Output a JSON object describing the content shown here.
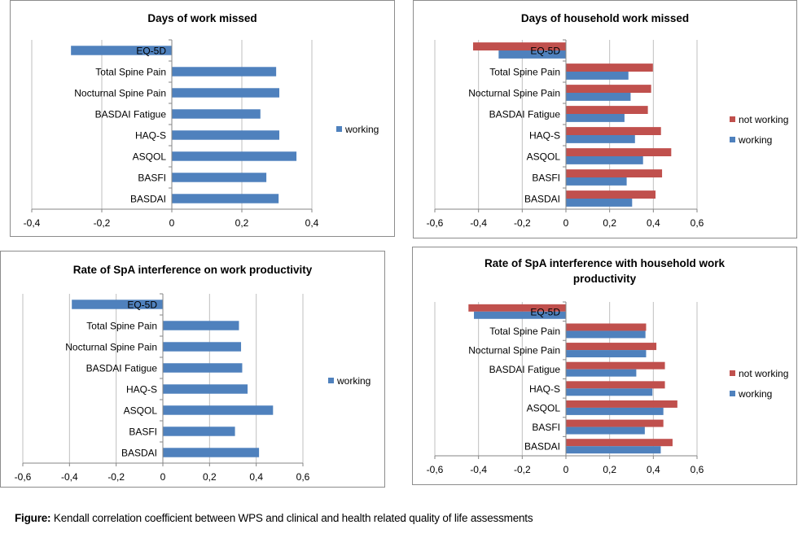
{
  "caption": {
    "prefix": "Figure:",
    "text": " Kendall correlation coefficient between WPS and clinical and health related quality of life assessments"
  },
  "colors": {
    "working": "#4F81BD",
    "not_working": "#C0504D",
    "grid": "#BFBFBF",
    "axis": "#868686"
  },
  "chart_data": [
    {
      "id": "days-work-missed",
      "type": "bar",
      "orientation": "horizontal",
      "title": "Days of work missed",
      "categories": [
        "EQ-5D",
        "Total Spine Pain",
        "Nocturnal Spine Pain",
        "BASDAI Fatigue",
        "HAQ-S",
        "ASQOL",
        "BASFI",
        "BASDAI"
      ],
      "series": [
        {
          "name": "working",
          "color": "#4F81BD",
          "values": [
            -0.288,
            0.298,
            0.307,
            0.253,
            0.307,
            0.356,
            0.27,
            0.305
          ]
        }
      ],
      "xlim": [
        -0.4,
        0.4
      ],
      "xticks": [
        -0.4,
        -0.2,
        0,
        0.2,
        0.4
      ],
      "xtick_labels": [
        "-0,4",
        "-0,2",
        "0",
        "0,2",
        "0,4"
      ],
      "grid": true,
      "legend": "right",
      "xlabel": "",
      "ylabel": ""
    },
    {
      "id": "days-household-work-missed",
      "type": "bar",
      "orientation": "horizontal",
      "title": "Days of household  work missed",
      "categories": [
        "EQ-5D",
        "Total Spine Pain",
        "Nocturnal Spine Pain",
        "BASDAI Fatigue",
        "HAQ-S",
        "ASQOL",
        "BASFI",
        "BASDAI"
      ],
      "series": [
        {
          "name": "not working",
          "color": "#C0504D",
          "values": [
            -0.425,
            0.398,
            0.39,
            0.375,
            0.435,
            0.482,
            0.44,
            0.41
          ]
        },
        {
          "name": "working",
          "color": "#4F81BD",
          "values": [
            -0.308,
            0.286,
            0.296,
            0.268,
            0.316,
            0.353,
            0.278,
            0.303
          ]
        }
      ],
      "xlim": [
        -0.6,
        0.6
      ],
      "xticks": [
        -0.6,
        -0.4,
        -0.2,
        0,
        0.2,
        0.4,
        0.6
      ],
      "xtick_labels": [
        "-0,6",
        "-0,4",
        "-0,2",
        "0",
        "0,2",
        "0,4",
        "0,6"
      ],
      "grid": true,
      "legend": "right",
      "xlabel": "",
      "ylabel": ""
    },
    {
      "id": "rate-interference-work",
      "type": "bar",
      "orientation": "horizontal",
      "title": "Rate of SpA interference on work productivity",
      "categories": [
        "EQ-5D",
        "Total Spine Pain",
        "Nocturnal Spine Pain",
        "BASDAI Fatigue",
        "HAQ-S",
        "ASQOL",
        "BASFI",
        "BASDAI"
      ],
      "series": [
        {
          "name": "working",
          "color": "#4F81BD",
          "values": [
            -0.39,
            0.326,
            0.335,
            0.34,
            0.363,
            0.472,
            0.309,
            0.412
          ]
        }
      ],
      "xlim": [
        -0.6,
        0.6
      ],
      "xticks": [
        -0.6,
        -0.4,
        -0.2,
        0,
        0.2,
        0.4,
        0.6
      ],
      "xtick_labels": [
        "-0,6",
        "-0,4",
        "-0,2",
        "0",
        "0,2",
        "0,4",
        "0,6"
      ],
      "grid": true,
      "legend": "right",
      "xlabel": "",
      "ylabel": ""
    },
    {
      "id": "rate-interference-household",
      "type": "bar",
      "orientation": "horizontal",
      "title": "Rate of SpA interference with household  work productivity",
      "title_lines": [
        "Rate of SpA interference with household  work",
        "productivity"
      ],
      "categories": [
        "EQ-5D",
        "Total Spine Pain",
        "Nocturnal Spine Pain",
        "BASDAI Fatigue",
        "HAQ-S",
        "ASQOL",
        "BASFI",
        "BASDAI"
      ],
      "series": [
        {
          "name": "not working",
          "color": "#C0504D",
          "values": [
            -0.446,
            0.367,
            0.414,
            0.453,
            0.453,
            0.51,
            0.446,
            0.488
          ]
        },
        {
          "name": "working",
          "color": "#4F81BD",
          "values": [
            -0.421,
            0.364,
            0.367,
            0.322,
            0.396,
            0.446,
            0.361,
            0.434
          ]
        }
      ],
      "xlim": [
        -0.6,
        0.6
      ],
      "xticks": [
        -0.6,
        -0.4,
        -0.2,
        0,
        0.2,
        0.4,
        0.6
      ],
      "xtick_labels": [
        "-0,6",
        "-0,4",
        "-0,2",
        "0",
        "0,2",
        "0,4",
        "0,6"
      ],
      "grid": true,
      "legend": "right",
      "xlabel": "",
      "ylabel": ""
    }
  ]
}
